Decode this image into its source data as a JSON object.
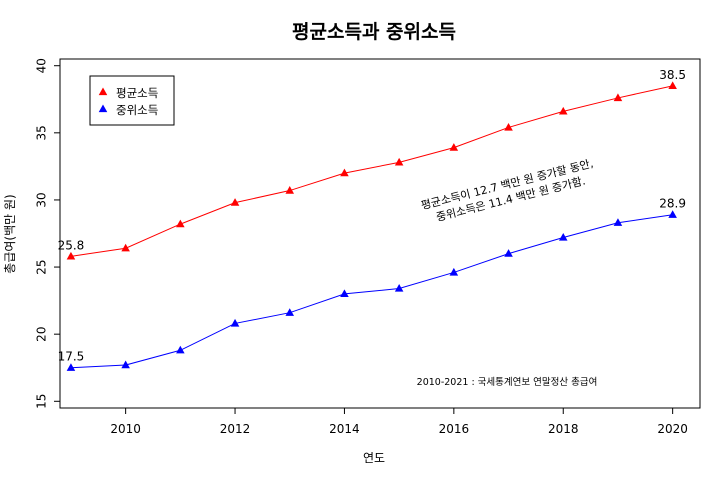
{
  "chart_data": {
    "type": "line",
    "title": "평균소득과 중위소득",
    "xlabel": "연도",
    "ylabel": "총급여(백만 원)",
    "xlim": [
      2008.8,
      2020.5
    ],
    "ylim": [
      14.5,
      40.5
    ],
    "x": [
      2009,
      2010,
      2011,
      2012,
      2013,
      2014,
      2015,
      2016,
      2017,
      2018,
      2019,
      2020
    ],
    "x_ticks": [
      2010,
      2012,
      2014,
      2016,
      2018,
      2020
    ],
    "y_ticks": [
      15,
      20,
      25,
      30,
      35,
      40
    ],
    "grid": false,
    "legend_position": "top-left",
    "series": [
      {
        "name": "평균소득",
        "color": "#ff0000",
        "marker": "triangle",
        "values": [
          25.8,
          26.4,
          28.2,
          29.8,
          30.7,
          32.0,
          32.8,
          33.9,
          35.4,
          36.6,
          37.6,
          38.5
        ]
      },
      {
        "name": "중위소득",
        "color": "#0000ff",
        "marker": "triangle",
        "values": [
          17.5,
          17.7,
          18.8,
          20.8,
          21.6,
          23.0,
          23.4,
          24.6,
          26.0,
          27.2,
          28.3,
          28.9
        ]
      }
    ],
    "data_labels": [
      {
        "series": 0,
        "index": 0,
        "text": "25.8"
      },
      {
        "series": 0,
        "index": 11,
        "text": "38.5"
      },
      {
        "series": 1,
        "index": 0,
        "text": "17.5"
      },
      {
        "series": 1,
        "index": 11,
        "text": "28.9"
      }
    ],
    "annotation_lines": [
      "평균소득이 12.7 백만 원 증가할 동안,",
      "중위소득은 11.4 백만 원 증가함."
    ],
    "caption": "2010-2021 : 국세통계연보 연말정산 총급여"
  }
}
